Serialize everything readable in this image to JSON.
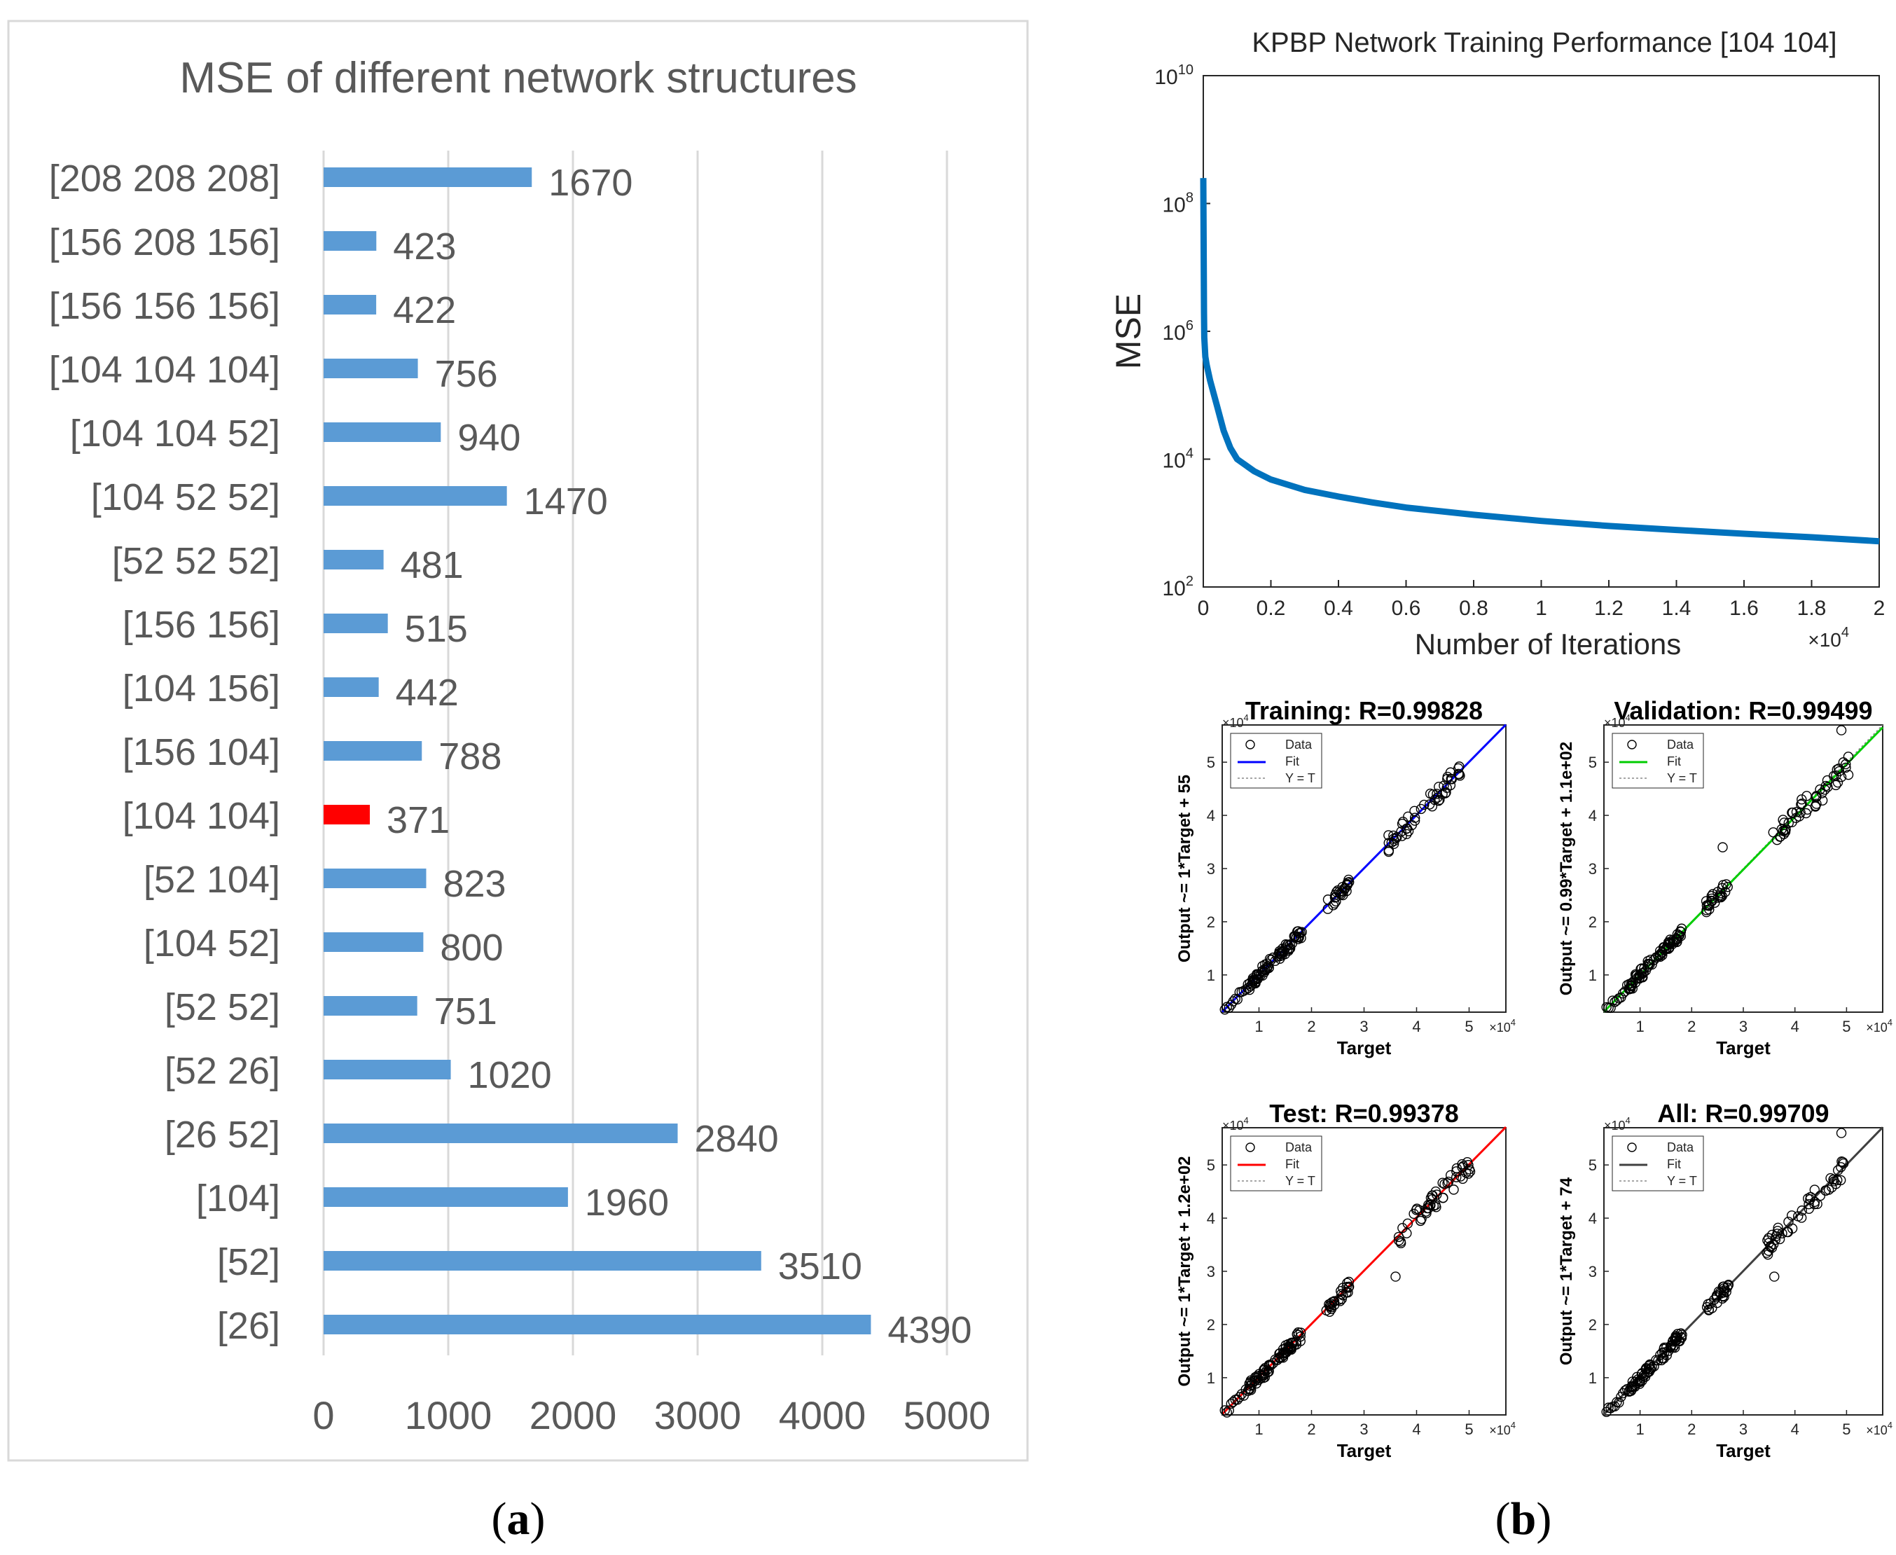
{
  "panels": {
    "a": {
      "label": "(a)",
      "paren_open": "(",
      "letter": "a",
      "paren_close": ")"
    },
    "b": {
      "label": "(b)",
      "paren_open": "(",
      "letter": "b",
      "paren_close": ")"
    }
  },
  "chart_data": [
    {
      "type": "bar",
      "orientation": "horizontal",
      "title": "MSE of different network structures",
      "categories": [
        "[208 208 208]",
        "[156 208 156]",
        "[156 156 156]",
        "[104 104 104]",
        "[104 104 52]",
        "[104 52 52]",
        "[52 52 52]",
        "[156 156]",
        "[104 156]",
        "[156 104]",
        "[104 104]",
        "[52 104]",
        "[104 52]",
        "[52 52]",
        "[52 26]",
        "[26 52]",
        "[104]",
        "[52]",
        "[26]"
      ],
      "values": [
        1670,
        423,
        422,
        756,
        940,
        1470,
        481,
        515,
        442,
        788,
        371,
        823,
        800,
        751,
        1020,
        2840,
        1960,
        3510,
        4390
      ],
      "value_labels": [
        "1670",
        "423",
        "422",
        "756",
        "940",
        "1470",
        "481",
        "515",
        "442",
        "788",
        "371",
        "823",
        "800",
        "751",
        "1020",
        "2840",
        "1960",
        "3510",
        "4390"
      ],
      "highlight_category": "[104 104]",
      "xlim": [
        0,
        5000
      ],
      "xticks": [
        "0",
        "1000",
        "2000",
        "3000",
        "4000",
        "5000"
      ],
      "colors": {
        "bar": "#5b9bd5",
        "highlight": "#ff0000",
        "grid": "#d9d9d9"
      },
      "grid": true
    },
    {
      "type": "line",
      "title": "KPBP Network Training Performance [104 104]",
      "xlabel": "Number of Iterations",
      "ylabel": "MSE",
      "xscale_label": "×10",
      "xscale_exp": "4",
      "xlim": [
        0,
        2
      ],
      "ylim": [
        100,
        10000000000
      ],
      "yscale": "log",
      "xticks": [
        "0",
        "0.2",
        "0.4",
        "0.6",
        "0.8",
        "1",
        "1.2",
        "1.4",
        "1.6",
        "1.8",
        "2"
      ],
      "yticks": [
        {
          "base": "10",
          "exp": "2"
        },
        {
          "base": "10",
          "exp": "4"
        },
        {
          "base": "10",
          "exp": "6"
        },
        {
          "base": "10",
          "exp": "8"
        },
        {
          "base": "10",
          "exp": "10"
        }
      ],
      "series": [
        {
          "x": [
            0,
            0.002,
            0.003,
            0.006,
            0.01,
            0.02,
            0.04,
            0.06,
            0.08,
            0.1,
            0.15,
            0.2,
            0.3,
            0.4,
            0.5,
            0.6,
            0.8,
            1.0,
            1.2,
            1.4,
            1.6,
            1.8,
            2.0
          ],
          "y": [
            250000000,
            2000000,
            800000,
            400000,
            300000,
            170000,
            70000,
            28000,
            15000,
            10000,
            6500,
            4800,
            3300,
            2600,
            2100,
            1750,
            1350,
            1080,
            900,
            780,
            680,
            600,
            520
          ]
        }
      ],
      "color": "#0072bd"
    },
    {
      "type": "scatter",
      "title": "Training: R=0.99828",
      "xlabel": "Target",
      "ylabel": "Output ~= 1*Target + 55",
      "exp_label": "×10",
      "exp": "4",
      "xticks": [
        "1",
        "2",
        "3",
        "4",
        "5"
      ],
      "yticks": [
        "1",
        "2",
        "3",
        "4",
        "5"
      ],
      "xlim": [
        0.3,
        5.7
      ],
      "ylim": [
        0.3,
        5.7
      ],
      "legend": [
        "Data",
        "Fit",
        "Y = T"
      ],
      "fit_color": "#0000ff",
      "fit": {
        "slope": 1.0,
        "intercept": 0.0055
      },
      "clusters": [
        [
          1.0,
          1.0
        ],
        [
          1.6,
          1.6
        ],
        [
          2.5,
          2.5
        ],
        [
          3.8,
          3.8
        ],
        [
          4.5,
          4.5
        ]
      ],
      "outliers": []
    },
    {
      "type": "scatter",
      "title": "Validation: R=0.99499",
      "xlabel": "Target",
      "ylabel": "Output ~= 0.99*Target + 1.1e+02",
      "exp_label": "×10",
      "exp": "4",
      "xticks": [
        "1",
        "2",
        "3",
        "4",
        "5"
      ],
      "yticks": [
        "1",
        "2",
        "3",
        "4",
        "5"
      ],
      "xlim": [
        0.3,
        5.7
      ],
      "ylim": [
        0.3,
        5.7
      ],
      "legend": [
        "Data",
        "Fit",
        "Y = T"
      ],
      "fit_color": "#00cc00",
      "fit": {
        "slope": 0.99,
        "intercept": 0.011
      },
      "clusters": [
        [
          1.0,
          1.0
        ],
        [
          1.6,
          1.6
        ],
        [
          2.5,
          2.5
        ],
        [
          3.9,
          3.9
        ],
        [
          4.7,
          4.6
        ]
      ],
      "outliers": [
        [
          4.9,
          5.6
        ],
        [
          2.6,
          3.4
        ]
      ]
    },
    {
      "type": "scatter",
      "title": "Test: R=0.99378",
      "xlabel": "Target",
      "ylabel": "Output ~= 1*Target + 1.2e+02",
      "exp_label": "×10",
      "exp": "4",
      "xticks": [
        "1",
        "2",
        "3",
        "4",
        "5"
      ],
      "yticks": [
        "1",
        "2",
        "3",
        "4",
        "5"
      ],
      "xlim": [
        0.3,
        5.7
      ],
      "ylim": [
        0.3,
        5.7
      ],
      "legend": [
        "Data",
        "Fit",
        "Y = T"
      ],
      "fit_color": "#ff0000",
      "fit": {
        "slope": 1.0,
        "intercept": 0.012
      },
      "clusters": [
        [
          1.0,
          1.0
        ],
        [
          1.6,
          1.6
        ],
        [
          2.5,
          2.5
        ],
        [
          4.0,
          4.0
        ],
        [
          4.7,
          4.7
        ]
      ],
      "outliers": [
        [
          3.6,
          2.9
        ]
      ]
    },
    {
      "type": "scatter",
      "title": "All: R=0.99709",
      "xlabel": "Target",
      "ylabel": "Output ~= 1*Target + 74",
      "exp_label": "×10",
      "exp": "4",
      "xticks": [
        "1",
        "2",
        "3",
        "4",
        "5"
      ],
      "yticks": [
        "1",
        "2",
        "3",
        "4",
        "5"
      ],
      "xlim": [
        0.3,
        5.7
      ],
      "ylim": [
        0.3,
        5.7
      ],
      "legend": [
        "Data",
        "Fit",
        "Y = T"
      ],
      "fit_color": "#404040",
      "fit": {
        "slope": 1.0,
        "intercept": 0.0074
      },
      "clusters": [
        [
          1.0,
          1.0
        ],
        [
          1.6,
          1.6
        ],
        [
          2.5,
          2.5
        ],
        [
          3.8,
          3.8
        ],
        [
          4.6,
          4.6
        ]
      ],
      "outliers": [
        [
          4.9,
          5.6
        ],
        [
          3.6,
          2.9
        ]
      ]
    }
  ]
}
